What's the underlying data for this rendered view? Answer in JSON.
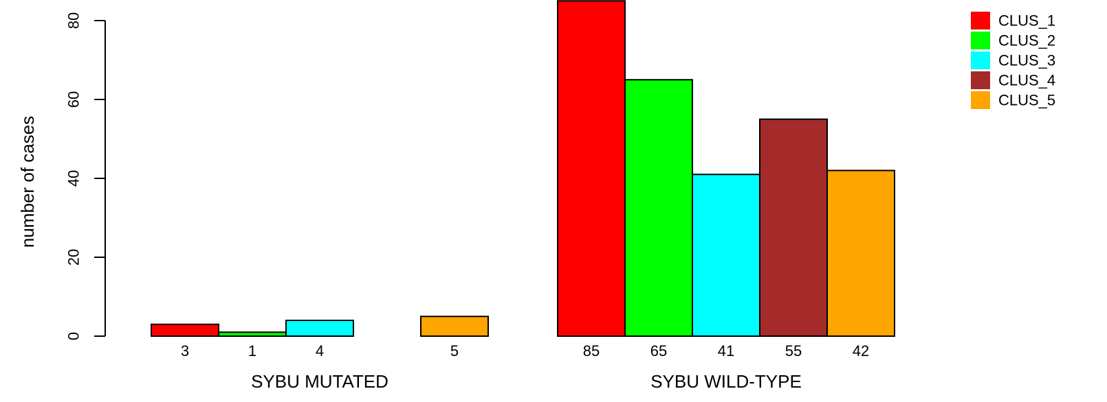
{
  "chart_data": {
    "type": "bar",
    "ylabel": "number of cases",
    "ylim": [
      0,
      80
    ],
    "yticks": [
      0,
      20,
      40,
      60,
      80
    ],
    "groups": [
      {
        "label": "SYBU MUTATED",
        "values": [
          3,
          1,
          4,
          0,
          5
        ],
        "value_labels": [
          "3",
          "1",
          "4",
          "",
          "5"
        ]
      },
      {
        "label": "SYBU WILD-TYPE",
        "values": [
          85,
          65,
          41,
          55,
          42
        ],
        "value_labels": [
          "85",
          "65",
          "41",
          "55",
          "42"
        ]
      }
    ],
    "series": [
      {
        "name": "CLUS_1",
        "color": "#ff0000"
      },
      {
        "name": "CLUS_2",
        "color": "#00ff00"
      },
      {
        "name": "CLUS_3",
        "color": "#00ffff"
      },
      {
        "name": "CLUS_4",
        "color": "#a52a2a"
      },
      {
        "name": "CLUS_5",
        "color": "#ffa500"
      }
    ],
    "legend_position": "top-right"
  }
}
